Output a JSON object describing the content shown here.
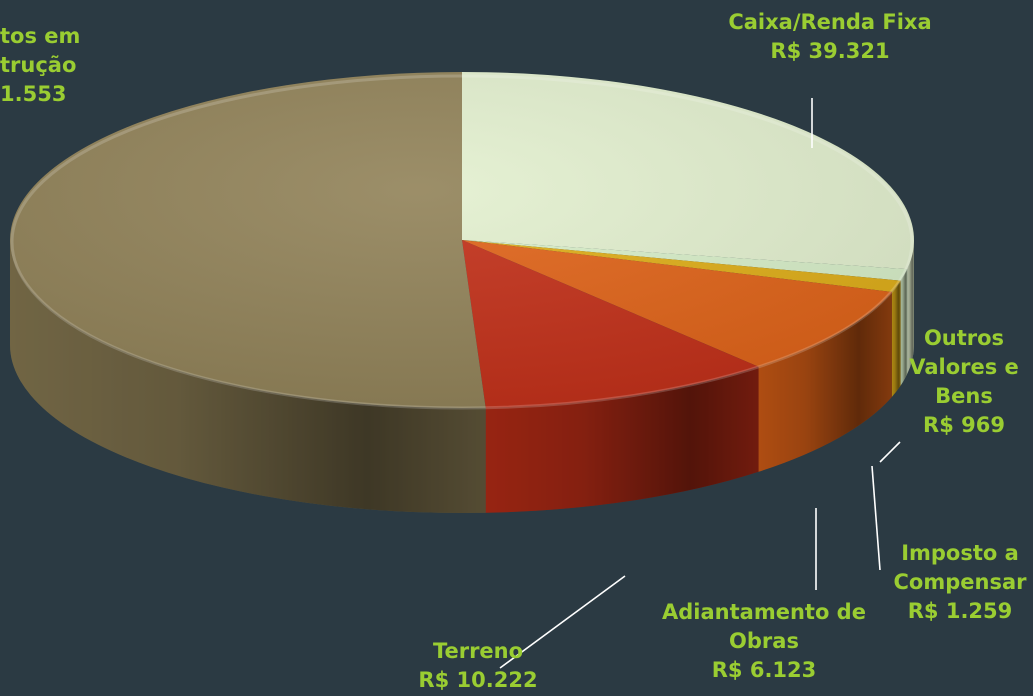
{
  "chart_data": {
    "type": "pie",
    "style": "3d",
    "title": "",
    "currency": "R$",
    "slices": [
      {
        "id": "caixa",
        "lines": [
          "Caixa/Renda Fixa"
        ],
        "value_text": "R$ 39.321",
        "value": 39321,
        "color": "#e3f0cf"
      },
      {
        "id": "outros",
        "lines": [
          "Outros",
          "Valores e",
          "Bens"
        ],
        "value_text": "R$ 969",
        "value": 969,
        "color": "#d8efc9"
      },
      {
        "id": "imposto",
        "lines": [
          "Imposto a",
          "Compensar"
        ],
        "value_text": "R$ 1.259",
        "value": 1259,
        "color": "#dfae18"
      },
      {
        "id": "adiantamento",
        "lines": [
          "Adiantamento de",
          "Obras"
        ],
        "value_text": "R$ 6.123",
        "value": 6123,
        "color": "#e06318"
      },
      {
        "id": "terreno",
        "lines": [
          "Terreno"
        ],
        "value_text": "R$ 10.222",
        "value": 10222,
        "color": "#c22f18"
      },
      {
        "id": "imoveis",
        "lines": [
          "tos em",
          "trução"
        ],
        "value_text": "1.553",
        "value": null,
        "color": "#918258"
      }
    ]
  }
}
